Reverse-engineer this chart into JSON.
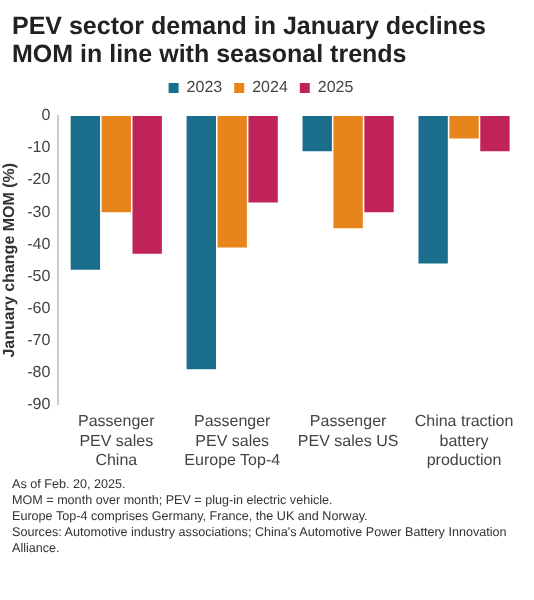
{
  "chart_data": {
    "type": "bar",
    "title": "PEV sector demand in January declines MOM in line with seasonal trends",
    "ylabel": "January change MOM (%)",
    "categories": [
      "Passenger PEV sales China",
      "Passenger PEV sales Europe Top-4",
      "Passenger PEV sales US",
      "China traction battery production"
    ],
    "series": [
      {
        "name": "2023",
        "color": "#1a6e8c",
        "values": [
          -48,
          -79,
          -11,
          -46
        ]
      },
      {
        "name": "2024",
        "color": "#e8841c",
        "values": [
          -30,
          -41,
          -35,
          -7
        ]
      },
      {
        "name": "2025",
        "color": "#c0225a",
        "values": [
          -43,
          -27,
          -30,
          -11
        ]
      }
    ],
    "ylim": [
      -90,
      0
    ],
    "yticks": [
      -90,
      -80,
      -70,
      -60,
      -50,
      -40,
      -30,
      -20,
      -10,
      0
    ],
    "grid": false,
    "legend": "top",
    "annotations": [
      "As of Feb. 20, 2025.",
      "MOM = month over month; PEV = plug-in electric vehicle.",
      "Europe Top-4 comprises Germany, France, the UK and Norway.",
      "Sources: Automotive industry associations; China's Automotive Power Battery Innovation Alliance."
    ]
  }
}
